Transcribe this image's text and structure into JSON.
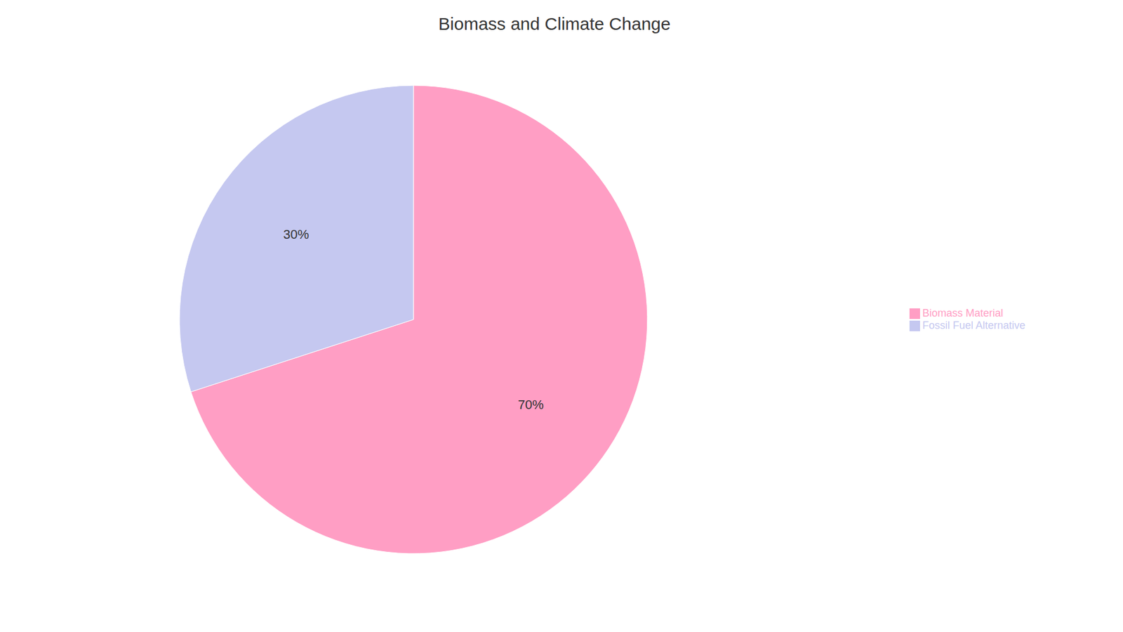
{
  "chart_data": {
    "type": "pie",
    "title": "Biomass and Climate Change",
    "categories": [
      "Biomass Material",
      "Fossil Fuel Alternative"
    ],
    "values": [
      70,
      30
    ],
    "value_labels": [
      "70%",
      "30%"
    ],
    "colors": [
      "#FF9EC4",
      "#C5C8F0"
    ],
    "data_labels": true,
    "legend": "right"
  }
}
